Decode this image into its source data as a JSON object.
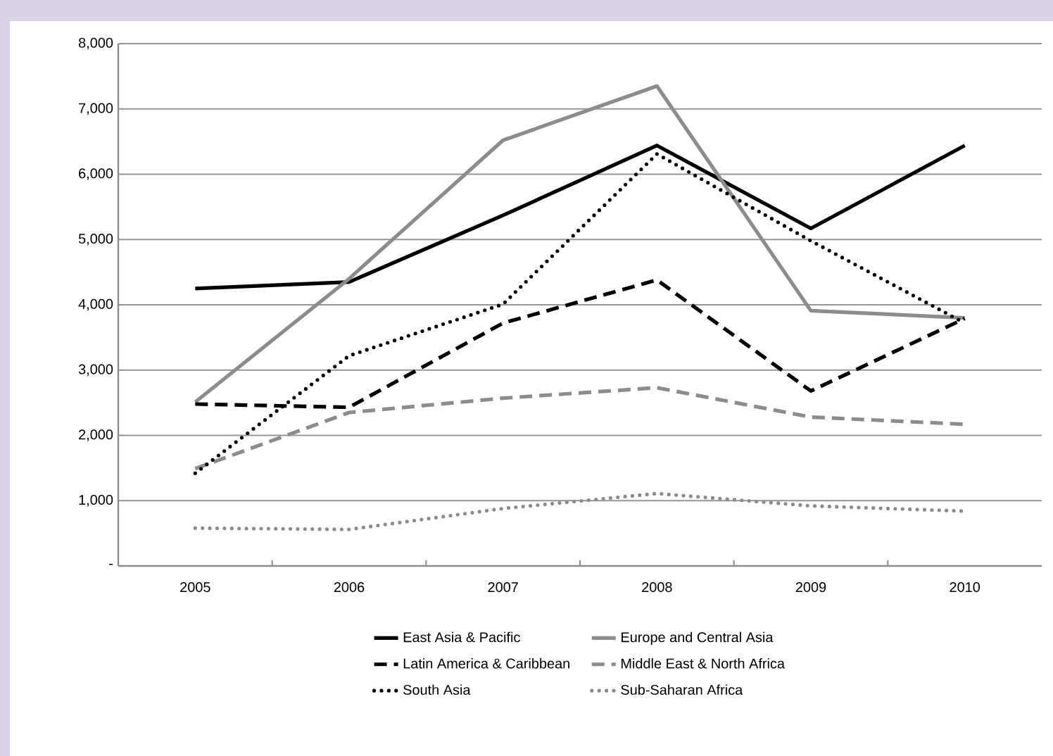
{
  "chart_data": {
    "type": "line",
    "categories": [
      "2005",
      "2006",
      "2007",
      "2008",
      "2009",
      "2010"
    ],
    "ylim": [
      0,
      8000
    ],
    "yticks": [
      {
        "value": 0,
        "label": "-"
      },
      {
        "value": 1000,
        "label": "1,000"
      },
      {
        "value": 2000,
        "label": "2,000"
      },
      {
        "value": 3000,
        "label": "3,000"
      },
      {
        "value": 4000,
        "label": "4,000"
      },
      {
        "value": 5000,
        "label": "5,000"
      },
      {
        "value": 6000,
        "label": "6,000"
      },
      {
        "value": 7000,
        "label": "7,000"
      },
      {
        "value": 8000,
        "label": "8,000"
      }
    ],
    "grid": "y",
    "legend": "bottom",
    "marker": "none",
    "series": [
      {
        "name": "East Asia & Pacific",
        "color": "#000000",
        "line_style": "solid",
        "values": [
          4250,
          4350,
          5370,
          6440,
          5170,
          6440
        ]
      },
      {
        "name": "Europe and Central Asia",
        "color": "#8c8c8c",
        "line_style": "solid",
        "values": [
          2510,
          4400,
          6520,
          7350,
          3910,
          3800
        ]
      },
      {
        "name": "Latin America & Caribbean",
        "color": "#000000",
        "line_style": "dashed",
        "values": [
          2480,
          2430,
          3720,
          4380,
          2680,
          3790
        ]
      },
      {
        "name": "Middle East & North Africa",
        "color": "#8c8c8c",
        "line_style": "dashed",
        "values": [
          1490,
          2350,
          2570,
          2730,
          2280,
          2170
        ]
      },
      {
        "name": "South Asia",
        "color": "#000000",
        "line_style": "dotted",
        "values": [
          1420,
          3220,
          4010,
          6310,
          4980,
          3720
        ]
      },
      {
        "name": "Sub-Saharan Africa",
        "color": "#8c8c8c",
        "line_style": "dotted",
        "values": [
          580,
          560,
          880,
          1110,
          920,
          840
        ]
      }
    ]
  }
}
